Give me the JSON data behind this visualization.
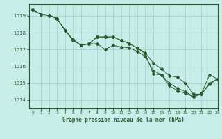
{
  "title": "Graphe pression niveau de la mer (hPa)",
  "xlim": [
    -0.5,
    23
  ],
  "ylim": [
    1013.5,
    1019.7
  ],
  "yticks": [
    1014,
    1015,
    1016,
    1017,
    1018,
    1019
  ],
  "xticks": [
    0,
    1,
    2,
    3,
    4,
    5,
    6,
    7,
    8,
    9,
    10,
    11,
    12,
    13,
    14,
    15,
    16,
    17,
    18,
    19,
    20,
    21,
    22,
    23
  ],
  "bg_color": "#c8ece8",
  "grid_color": "#a8d4d0",
  "line_color": "#2d5a2d",
  "series": [
    [
      1019.35,
      1019.1,
      1019.0,
      1018.85,
      1018.15,
      1017.55,
      1017.25,
      1017.35,
      1017.35,
      1017.0,
      1017.25,
      1017.15,
      1017.1,
      1016.9,
      1016.6,
      1015.75,
      1015.5,
      1014.85,
      1014.55,
      1014.4,
      1014.2,
      1014.4,
      1015.5,
      1015.25
    ],
    [
      1019.35,
      1019.1,
      1019.05,
      1018.85,
      1018.15,
      1017.6,
      1017.25,
      1017.35,
      1017.75,
      1017.75,
      1017.75,
      1017.55,
      1017.35,
      1017.1,
      1016.8,
      1016.2,
      1015.85,
      1015.45,
      1015.35,
      1015.0,
      1014.35,
      1014.35,
      1014.95,
      1015.25
    ],
    [
      1019.35,
      1019.1,
      1019.05,
      1018.85,
      1018.15,
      1017.6,
      1017.25,
      1017.35,
      1017.75,
      1017.75,
      1017.75,
      1017.55,
      1017.35,
      1017.1,
      1016.75,
      1015.55,
      1015.5,
      1015.0,
      1014.7,
      1014.5,
      1014.2,
      1014.35,
      1015.0,
      1015.25
    ]
  ]
}
